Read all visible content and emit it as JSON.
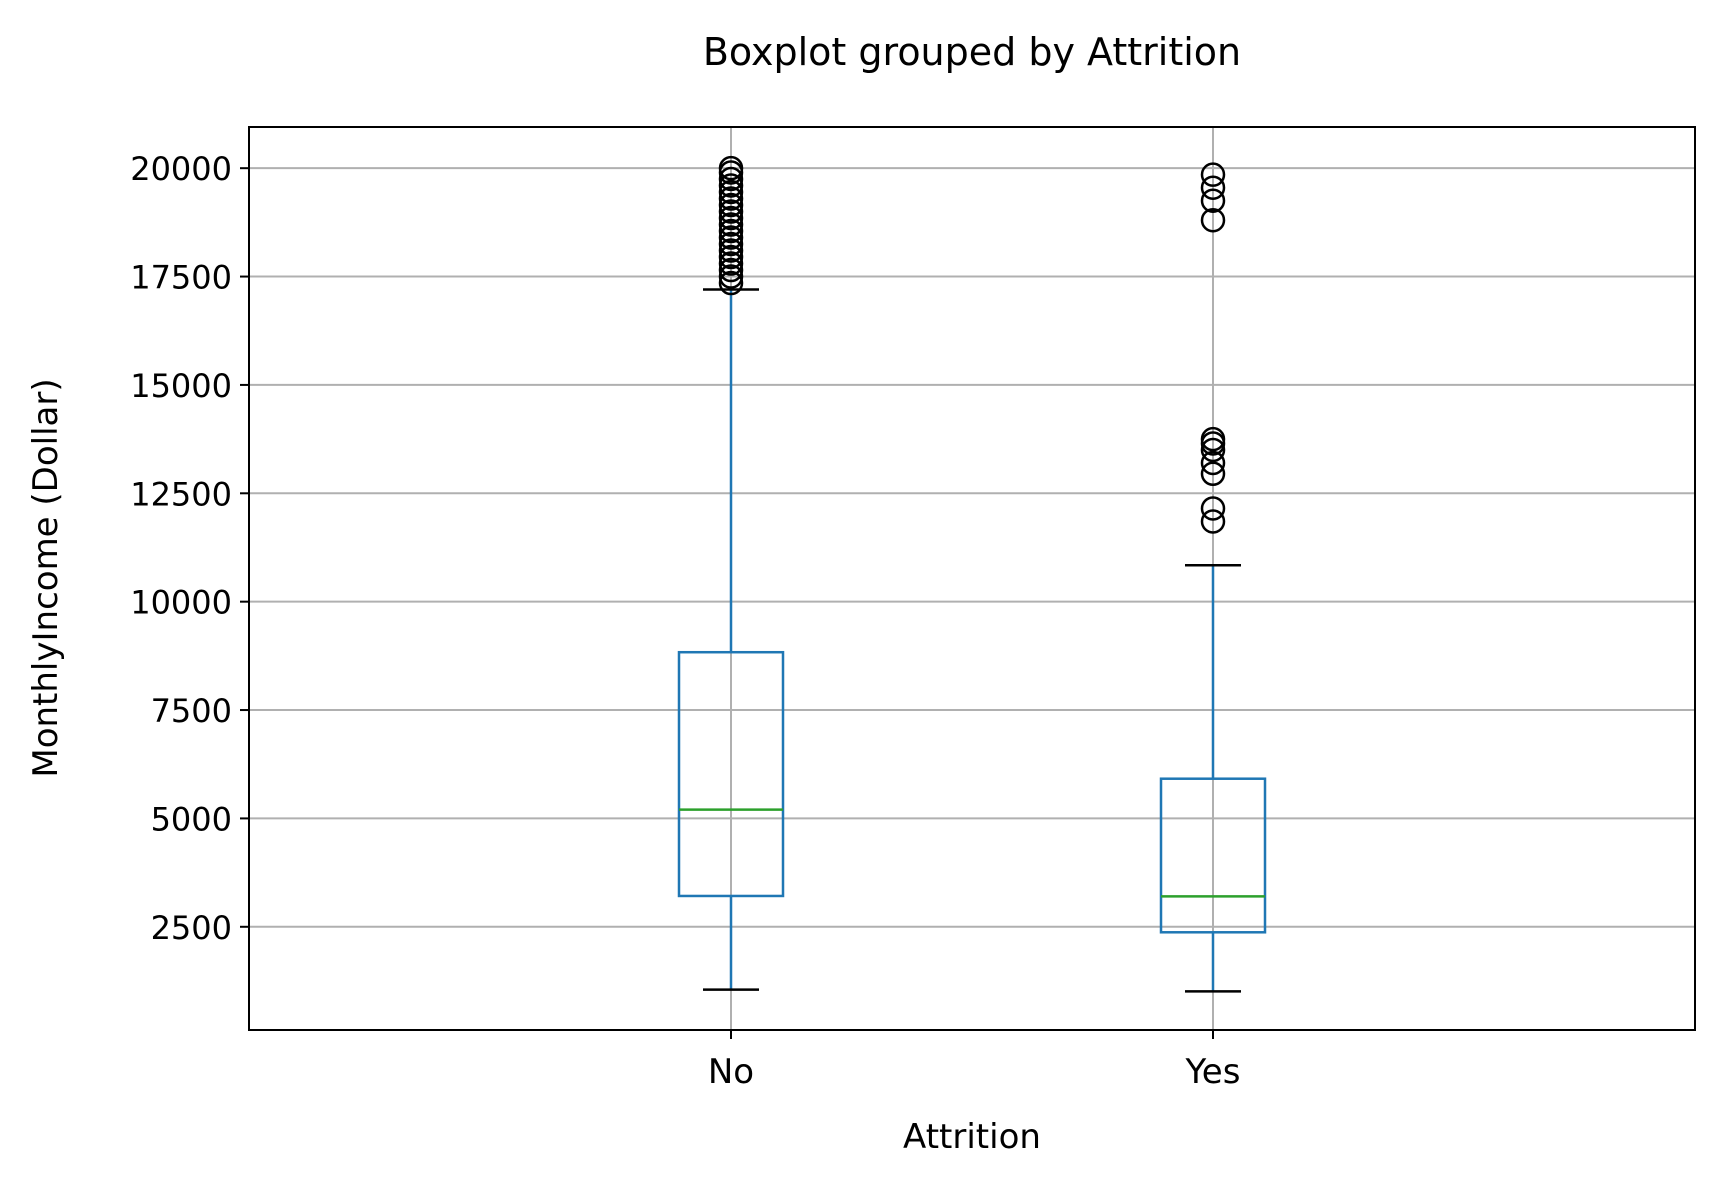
{
  "chart_data": {
    "type": "box",
    "title": "Boxplot grouped by Attrition",
    "xlabel": "Attrition",
    "ylabel": "MonthlyIncome (Dollar)",
    "ylim": [
      119,
      20950
    ],
    "yticks": [
      2500,
      5000,
      7500,
      10000,
      12500,
      15000,
      17500,
      20000
    ],
    "grid": true,
    "categories": [
      "No",
      "Yes"
    ],
    "boxes": [
      {
        "name": "No",
        "whisker_low": 1051,
        "q1": 3211,
        "median": 5204,
        "q3": 8834,
        "whisker_high": 17200,
        "outliers": [
          17350,
          17500,
          17650,
          17800,
          17950,
          18100,
          18250,
          18400,
          18550,
          18700,
          18850,
          19000,
          19150,
          19300,
          19450,
          19600,
          19750,
          19900,
          20000
        ]
      },
      {
        "name": "Yes",
        "whisker_low": 1009,
        "q1": 2373,
        "median": 3202,
        "q3": 5916,
        "whisker_high": 10840,
        "outliers": [
          11850,
          12150,
          12950,
          13200,
          13500,
          13650,
          13750,
          18800,
          19250,
          19550,
          19850
        ]
      }
    ],
    "colors": {
      "box": "#1f77b4",
      "median": "#2ca02c",
      "whisker_cap": "#000000",
      "outlier": "#000000",
      "grid": "#b0b0b0"
    }
  }
}
